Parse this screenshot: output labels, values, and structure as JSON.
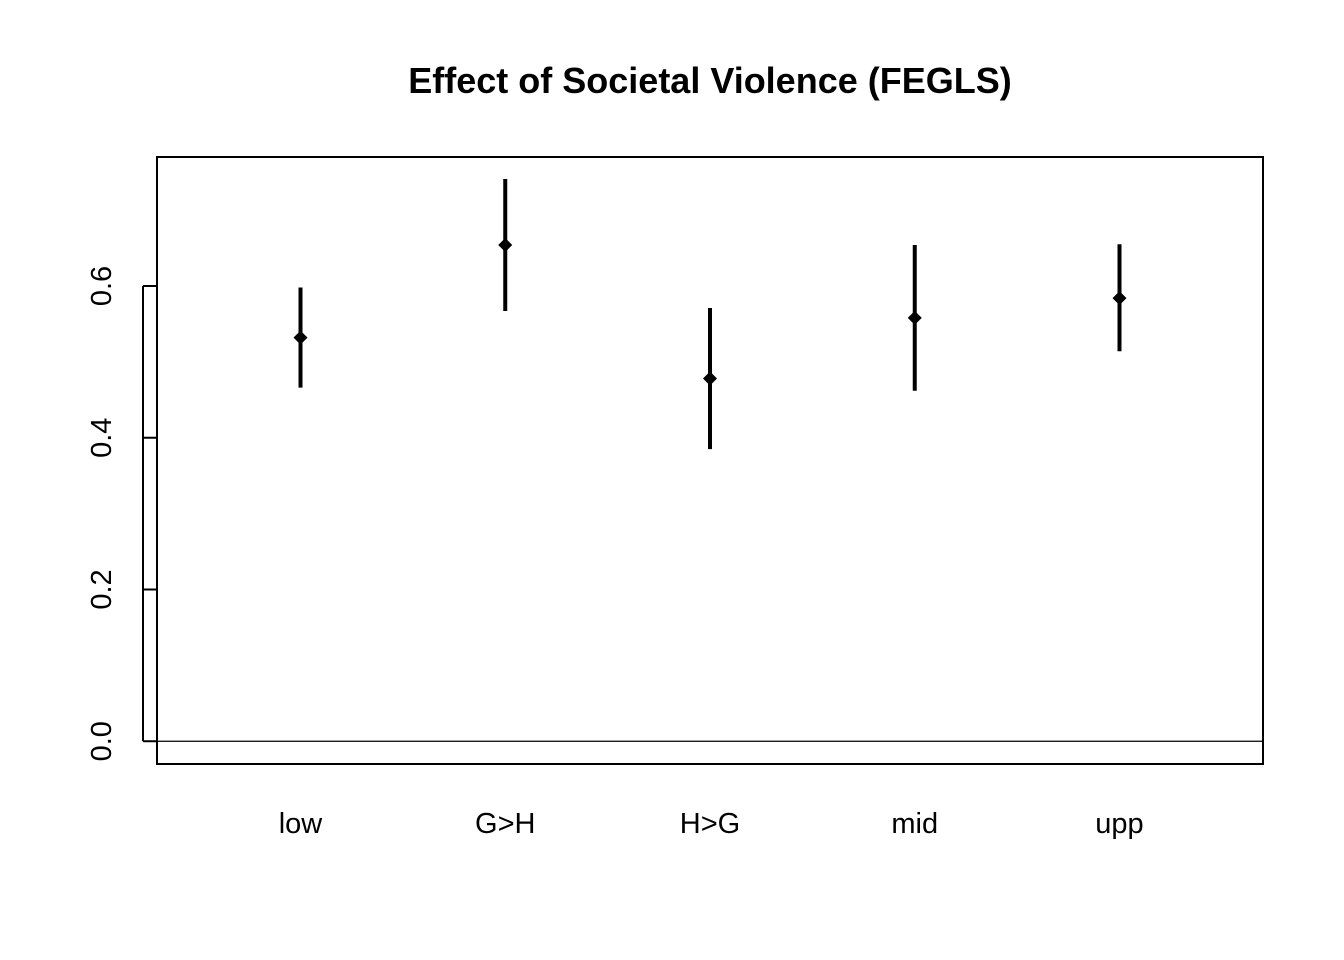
{
  "chart_data": {
    "type": "scatter",
    "title": "Effect of Societal Violence (FEGLS)",
    "xlabel": "",
    "ylabel": "",
    "categories": [
      "low",
      "G>H",
      "H>G",
      "mid",
      "upp"
    ],
    "series": [
      {
        "values": [
          0.532,
          0.654,
          0.478,
          0.558,
          0.584
        ],
        "lower": [
          0.466,
          0.567,
          0.385,
          0.462,
          0.514
        ],
        "upper": [
          0.598,
          0.741,
          0.571,
          0.654,
          0.655
        ]
      }
    ],
    "ylim": [
      -0.03,
      0.77
    ],
    "yticks": [
      0.0,
      0.2,
      0.4,
      0.6
    ],
    "ytick_labels": [
      "0.0",
      "0.2",
      "0.4",
      "0.6"
    ],
    "reference_line": 0.0,
    "grid": false,
    "legend": "none",
    "colors": {
      "marks": "#000000",
      "background": "#ffffff"
    }
  }
}
